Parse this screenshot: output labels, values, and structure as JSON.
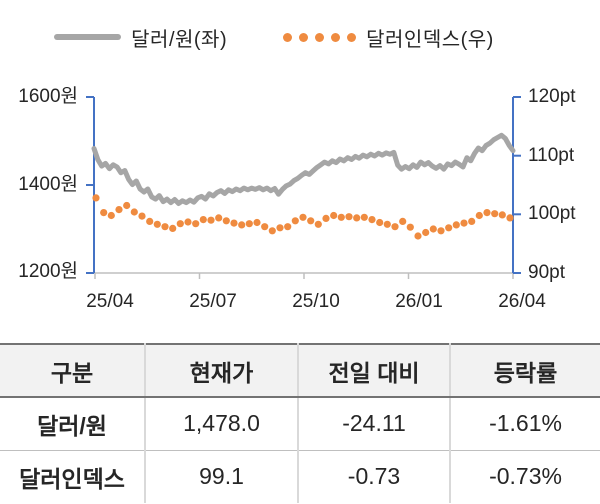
{
  "legend": {
    "series1_label": "달러/원(좌)",
    "series2_label": "달러인덱스(우)"
  },
  "chart_data": {
    "type": "line",
    "title": "",
    "x_axis": {
      "tick_labels": [
        "25/04",
        "25/07",
        "25/10",
        "26/01",
        "26/04"
      ]
    },
    "left_axis": {
      "tick_labels": [
        "1600원",
        "1400원",
        "1200원"
      ],
      "range": [
        1200,
        1600
      ]
    },
    "right_axis": {
      "tick_labels": [
        "120pt",
        "110pt",
        "100pt",
        "90pt"
      ],
      "range": [
        90,
        120
      ]
    },
    "legend_position": "top",
    "grid": false,
    "series": [
      {
        "name": "달러/원(좌)",
        "axis": "left",
        "style": "line",
        "color": "#a6a6a6",
        "values": [
          1483,
          1458,
          1443,
          1449,
          1437,
          1446,
          1441,
          1428,
          1433,
          1413,
          1401,
          1409,
          1391,
          1384,
          1391,
          1373,
          1368,
          1376,
          1362,
          1368,
          1360,
          1367,
          1358,
          1364,
          1360,
          1366,
          1361,
          1371,
          1374,
          1368,
          1380,
          1375,
          1383,
          1387,
          1381,
          1389,
          1385,
          1391,
          1387,
          1393,
          1389,
          1393,
          1390,
          1394,
          1389,
          1393,
          1387,
          1392,
          1379,
          1390,
          1398,
          1402,
          1410,
          1415,
          1422,
          1428,
          1424,
          1432,
          1440,
          1446,
          1452,
          1448,
          1455,
          1451,
          1459,
          1455,
          1462,
          1458,
          1465,
          1461,
          1468,
          1464,
          1470,
          1466,
          1472,
          1468,
          1473,
          1470,
          1474,
          1445,
          1436,
          1442,
          1437,
          1446,
          1440,
          1452,
          1446,
          1451,
          1443,
          1438,
          1444,
          1436,
          1448,
          1444,
          1452,
          1447,
          1441,
          1462,
          1455,
          1472,
          1484,
          1478,
          1490,
          1495,
          1503,
          1508,
          1513,
          1506,
          1490,
          1478
        ]
      },
      {
        "name": "달러인덱스(우)",
        "axis": "right",
        "style": "dots",
        "color": "#ef8b40",
        "values": [
          102.8,
          100.3,
          99.8,
          100.8,
          101.5,
          100.4,
          99.7,
          98.8,
          98.3,
          97.9,
          97.6,
          98.4,
          98.7,
          98.4,
          99.1,
          99.0,
          99.4,
          98.9,
          98.5,
          98.2,
          98.4,
          98.6,
          97.9,
          97.2,
          97.7,
          97.9,
          98.9,
          99.5,
          98.9,
          98.3,
          99.3,
          99.8,
          99.5,
          99.6,
          99.4,
          99.5,
          99.1,
          98.6,
          98.3,
          97.9,
          98.8,
          97.8,
          96.3,
          96.9,
          97.5,
          97.2,
          97.7,
          98.2,
          98.5,
          98.8,
          99.8,
          100.3,
          100.1,
          99.9,
          99.4
        ]
      }
    ]
  },
  "table": {
    "headers": [
      "구분",
      "현재가",
      "전일 대비",
      "등락률"
    ],
    "rows": [
      {
        "label": "달러/원",
        "current": "1,478.0",
        "change": "-24.11",
        "pct": "-1.61%"
      },
      {
        "label": "달러인덱스",
        "current": "99.1",
        "change": "-0.73",
        "pct": "-0.73%"
      }
    ]
  },
  "colors": {
    "axis_blue": "#4472c4",
    "axis_gray": "#bfbfbf",
    "line_gray": "#a6a6a6",
    "dot_orange": "#ef8b40",
    "header_bg": "#f2f2f2",
    "border_dark": "#737373",
    "border_light": "#d9d9d9"
  }
}
